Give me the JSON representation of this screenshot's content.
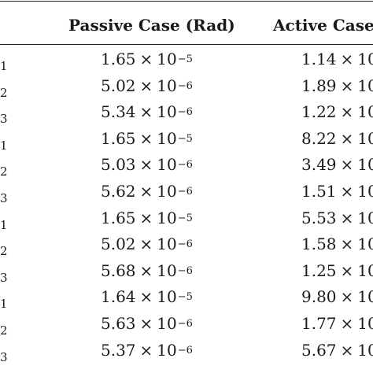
{
  "header": {
    "passive": "Passive Case (Rad)",
    "active": "Active Case"
  },
  "rows": [
    {
      "label": "1",
      "passive": {
        "mantissa": "1.65",
        "times": "×",
        "base": "10",
        "exp": "−5"
      },
      "active": {
        "mantissa": "1.14",
        "times": "×",
        "base": "10"
      }
    },
    {
      "label": "2",
      "passive": {
        "mantissa": "5.02",
        "times": "×",
        "base": "10",
        "exp": "−6"
      },
      "active": {
        "mantissa": "1.89",
        "times": "×",
        "base": "10"
      }
    },
    {
      "label": "3",
      "passive": {
        "mantissa": "5.34",
        "times": "×",
        "base": "10",
        "exp": "−6"
      },
      "active": {
        "mantissa": "1.22",
        "times": "×",
        "base": "10"
      }
    },
    {
      "label": "1",
      "passive": {
        "mantissa": "1.65",
        "times": "×",
        "base": "10",
        "exp": "−5"
      },
      "active": {
        "mantissa": "8.22",
        "times": "×",
        "base": "10"
      }
    },
    {
      "label": "2",
      "passive": {
        "mantissa": "5.03",
        "times": "×",
        "base": "10",
        "exp": "−6"
      },
      "active": {
        "mantissa": "3.49",
        "times": "×",
        "base": "10"
      }
    },
    {
      "label": "3",
      "passive": {
        "mantissa": "5.62",
        "times": "×",
        "base": "10",
        "exp": "−6"
      },
      "active": {
        "mantissa": "1.51",
        "times": "×",
        "base": "10"
      }
    },
    {
      "label": "1",
      "passive": {
        "mantissa": "1.65",
        "times": "×",
        "base": "10",
        "exp": "−5"
      },
      "active": {
        "mantissa": "5.53",
        "times": "×",
        "base": "10"
      }
    },
    {
      "label": "2",
      "passive": {
        "mantissa": "5.02",
        "times": "×",
        "base": "10",
        "exp": "−6"
      },
      "active": {
        "mantissa": "1.58",
        "times": "×",
        "base": "10"
      }
    },
    {
      "label": "3",
      "passive": {
        "mantissa": "5.68",
        "times": "×",
        "base": "10",
        "exp": "−6"
      },
      "active": {
        "mantissa": "1.25",
        "times": "×",
        "base": "10"
      }
    },
    {
      "label": "1",
      "passive": {
        "mantissa": "1.64",
        "times": "×",
        "base": "10",
        "exp": "−5"
      },
      "active": {
        "mantissa": "9.80",
        "times": "×",
        "base": "10"
      }
    },
    {
      "label": "2",
      "passive": {
        "mantissa": "5.63",
        "times": "×",
        "base": "10",
        "exp": "−6"
      },
      "active": {
        "mantissa": "1.77",
        "times": "×",
        "base": "10"
      }
    },
    {
      "label": "3",
      "passive": {
        "mantissa": "5.37",
        "times": "×",
        "base": "10",
        "exp": "−6"
      },
      "active": {
        "mantissa": "5.67",
        "times": "×",
        "base": "10"
      }
    }
  ]
}
